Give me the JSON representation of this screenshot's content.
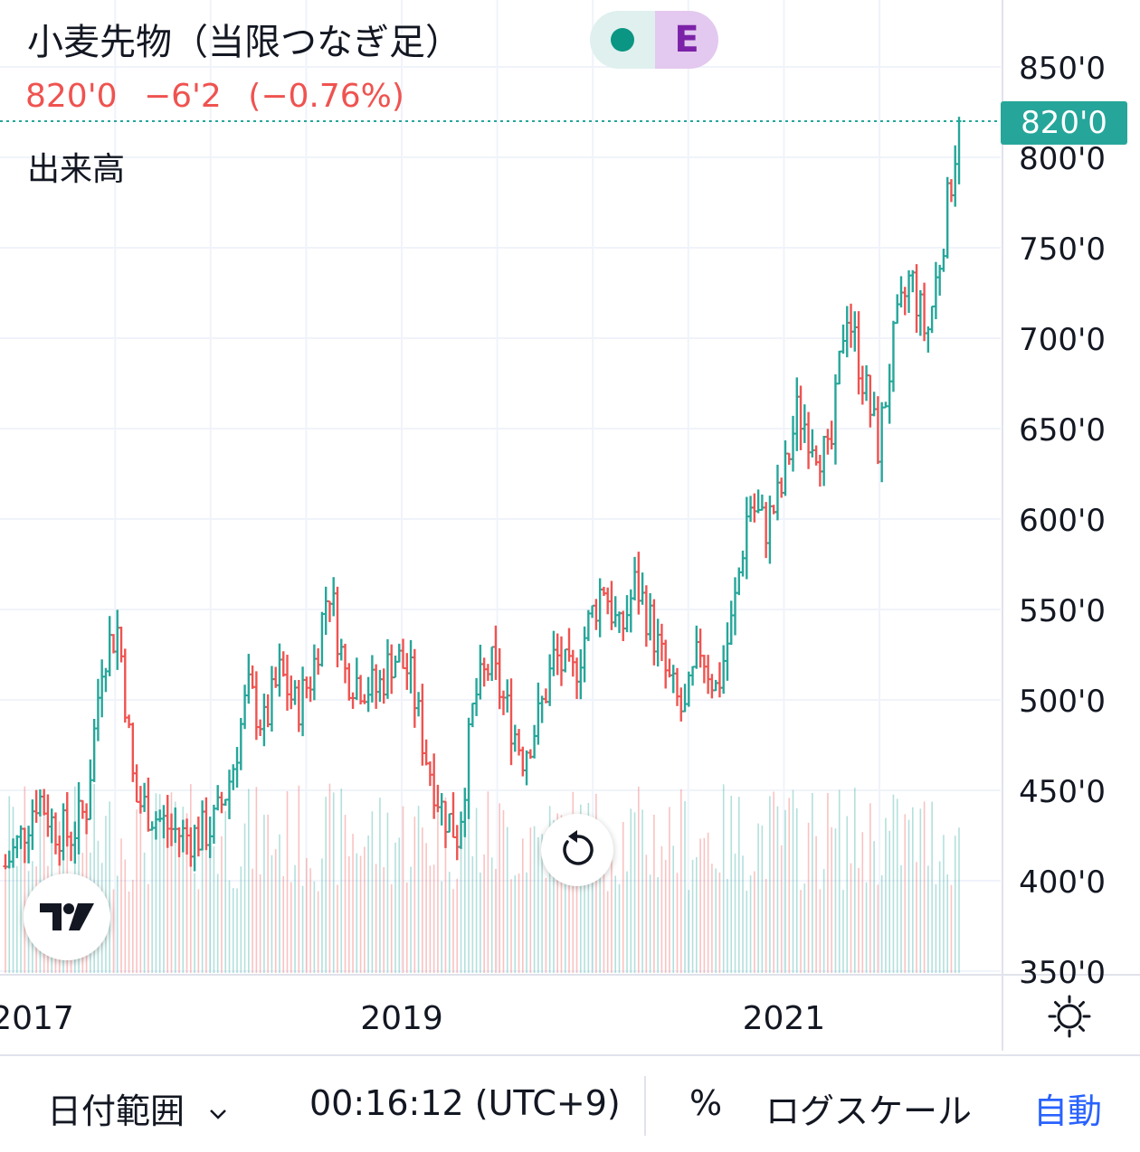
{
  "header": {
    "title": "小麦先物（当限つなぎ足）",
    "last_price": "820'0",
    "change": "−6'2",
    "change_pct": "(−0.76%)",
    "volume_label": "出来高",
    "status_badge": "E"
  },
  "price_tag": "820'0",
  "bottom_bar": {
    "date_range": "日付範囲",
    "clock": "00:16:12 (UTC+9)",
    "percent": "%",
    "log_scale": "ログスケール",
    "auto": "自動"
  },
  "colors": {
    "up": "#26a69a",
    "down": "#ef5350",
    "accent": "#2962ff",
    "grid": "#f0f3fa"
  },
  "icons": [
    "tradingview-logo-icon",
    "reset-icon",
    "gear-icon",
    "chevron-down-icon"
  ],
  "chart_data": {
    "type": "ohlc",
    "title": "小麦先物（当限つなぎ足）",
    "x_tick_labels": [
      "2017",
      "2019",
      "2021"
    ],
    "y_tick_labels": [
      "850'0",
      "800'0",
      "750'0",
      "700'0",
      "650'0",
      "600'0",
      "550'0",
      "500'0",
      "450'0",
      "400'0",
      "350'0"
    ],
    "y_ticks": [
      850,
      800,
      750,
      700,
      650,
      600,
      550,
      500,
      450,
      400,
      350
    ],
    "ylim": [
      342,
      855
    ],
    "last_price": 820,
    "grid": true,
    "series_close_weekly_approx": [
      {
        "x": "2016-12",
        "y": 408
      },
      {
        "x": "2017-01",
        "y": 425
      },
      {
        "x": "2017-02",
        "y": 448
      },
      {
        "x": "2017-03",
        "y": 430
      },
      {
        "x": "2017-04",
        "y": 425
      },
      {
        "x": "2017-05",
        "y": 440
      },
      {
        "x": "2017-06",
        "y": 525
      },
      {
        "x": "2017-07",
        "y": 540
      },
      {
        "x": "2017-08",
        "y": 445
      },
      {
        "x": "2017-09",
        "y": 438
      },
      {
        "x": "2017-10",
        "y": 430
      },
      {
        "x": "2017-11",
        "y": 425
      },
      {
        "x": "2017-12",
        "y": 425
      },
      {
        "x": "2018-01",
        "y": 432
      },
      {
        "x": "2018-02",
        "y": 460
      },
      {
        "x": "2018-03",
        "y": 505
      },
      {
        "x": "2018-04",
        "y": 485
      },
      {
        "x": "2018-05",
        "y": 515
      },
      {
        "x": "2018-06",
        "y": 495
      },
      {
        "x": "2018-07",
        "y": 515
      },
      {
        "x": "2018-08",
        "y": 565
      },
      {
        "x": "2018-09",
        "y": 515
      },
      {
        "x": "2018-10",
        "y": 510
      },
      {
        "x": "2018-11",
        "y": 505
      },
      {
        "x": "2018-12",
        "y": 525
      },
      {
        "x": "2019-01",
        "y": 515
      },
      {
        "x": "2019-02",
        "y": 470
      },
      {
        "x": "2019-03",
        "y": 440
      },
      {
        "x": "2019-04",
        "y": 425
      },
      {
        "x": "2019-05",
        "y": 500
      },
      {
        "x": "2019-06",
        "y": 520
      },
      {
        "x": "2019-07",
        "y": 495
      },
      {
        "x": "2019-08",
        "y": 470
      },
      {
        "x": "2019-09",
        "y": 490
      },
      {
        "x": "2019-10",
        "y": 525
      },
      {
        "x": "2019-11",
        "y": 510
      },
      {
        "x": "2019-12",
        "y": 540
      },
      {
        "x": "2020-01",
        "y": 565
      },
      {
        "x": "2020-02",
        "y": 535
      },
      {
        "x": "2020-03",
        "y": 565
      },
      {
        "x": "2020-04",
        "y": 540
      },
      {
        "x": "2020-05",
        "y": 510
      },
      {
        "x": "2020-06",
        "y": 490
      },
      {
        "x": "2020-07",
        "y": 530
      },
      {
        "x": "2020-08",
        "y": 505
      },
      {
        "x": "2020-09",
        "y": 545
      },
      {
        "x": "2020-10",
        "y": 610
      },
      {
        "x": "2020-11",
        "y": 595
      },
      {
        "x": "2020-12",
        "y": 615
      },
      {
        "x": "2021-01",
        "y": 660
      },
      {
        "x": "2021-02",
        "y": 645
      },
      {
        "x": "2021-03",
        "y": 630
      },
      {
        "x": "2021-04",
        "y": 720
      },
      {
        "x": "2021-05",
        "y": 680
      },
      {
        "x": "2021-06",
        "y": 640
      },
      {
        "x": "2021-07",
        "y": 700
      },
      {
        "x": "2021-08",
        "y": 735
      },
      {
        "x": "2021-09",
        "y": 700
      },
      {
        "x": "2021-10",
        "y": 755
      },
      {
        "x": "2021-11",
        "y": 820
      }
    ]
  }
}
